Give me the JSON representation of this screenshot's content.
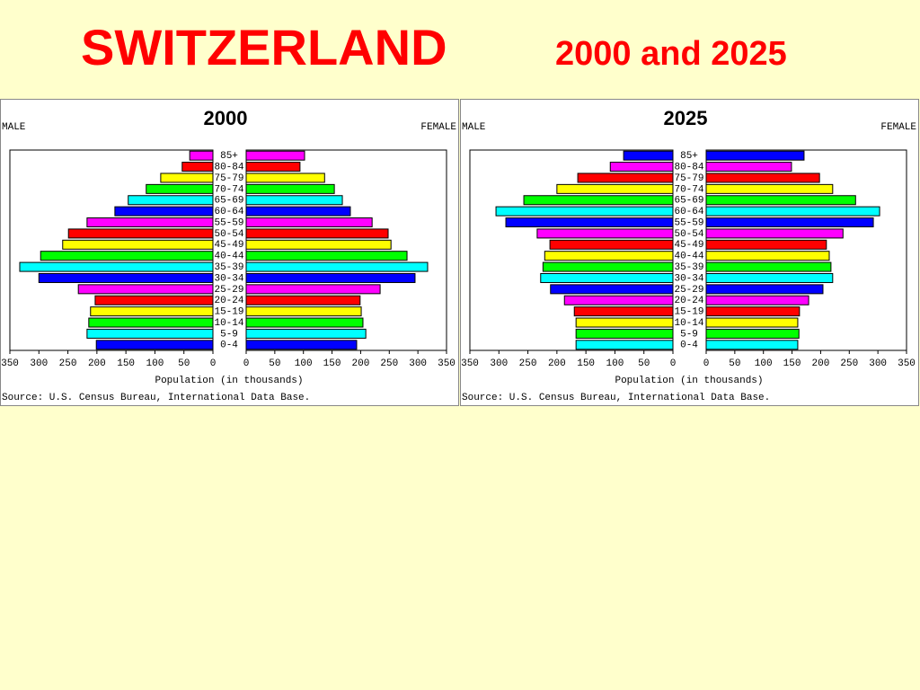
{
  "title": "SWITZERLAND",
  "subtitle": "2000 and 2025",
  "chart_data": [
    {
      "type": "pyramid",
      "title": "2000",
      "categories": [
        "0-4",
        "5-9",
        "10-14",
        "15-19",
        "20-24",
        "25-29",
        "30-34",
        "35-39",
        "40-44",
        "45-49",
        "50-54",
        "55-59",
        "60-64",
        "65-69",
        "70-74",
        "75-79",
        "80-84",
        "85+"
      ],
      "colors": [
        "#0000ff",
        "#00ffff",
        "#00ff00",
        "#ffff00",
        "#ff0000",
        "#ff00ff",
        "#0000ff",
        "#00ffff",
        "#00ff00",
        "#ffff00",
        "#ff0000",
        "#ff00ff",
        "#0000ff",
        "#00ffff",
        "#00ff00",
        "#ffff00",
        "#ff0000",
        "#ff00ff"
      ],
      "series": [
        {
          "name": "MALE",
          "values": [
            201,
            217,
            214,
            211,
            203,
            232,
            300,
            333,
            297,
            259,
            249,
            217,
            169,
            146,
            115,
            90,
            53,
            40
          ]
        },
        {
          "name": "FEMALE",
          "values": [
            193,
            209,
            204,
            201,
            199,
            234,
            295,
            317,
            281,
            253,
            248,
            220,
            182,
            168,
            154,
            137,
            94,
            102
          ]
        }
      ],
      "xlim": [
        0,
        350
      ],
      "xticks": [
        0,
        50,
        100,
        150,
        200,
        250,
        300,
        350
      ],
      "xlabel": "Population (in thousands)",
      "source": "Source: U.S. Census Bureau, International Data Base."
    },
    {
      "type": "pyramid",
      "title": "2025",
      "categories": [
        "0-4",
        "5-9",
        "10-14",
        "15-19",
        "20-24",
        "25-29",
        "30-34",
        "35-39",
        "40-44",
        "45-49",
        "50-54",
        "55-59",
        "60-64",
        "65-69",
        "70-74",
        "75-79",
        "80-84",
        "85+"
      ],
      "colors": [
        "#00ffff",
        "#00ff00",
        "#ffff00",
        "#ff0000",
        "#ff00ff",
        "#0000ff",
        "#00ffff",
        "#00ff00",
        "#ffff00",
        "#ff0000",
        "#ff00ff",
        "#0000ff",
        "#00ffff",
        "#00ff00",
        "#ffff00",
        "#ff0000",
        "#ff00ff",
        "#0000ff"
      ],
      "series": [
        {
          "name": "MALE",
          "values": [
            167,
            167,
            167,
            170,
            187,
            211,
            228,
            224,
            221,
            212,
            234,
            288,
            305,
            257,
            200,
            164,
            108,
            85
          ]
        },
        {
          "name": "FEMALE",
          "values": [
            160,
            162,
            160,
            163,
            179,
            204,
            221,
            218,
            215,
            210,
            239,
            292,
            303,
            261,
            221,
            198,
            149,
            171
          ]
        }
      ],
      "xlim": [
        0,
        350
      ],
      "xticks": [
        0,
        50,
        100,
        150,
        200,
        250,
        300,
        350
      ],
      "xlabel": "Population (in thousands)",
      "source": "Source: U.S. Census Bureau, International Data Base."
    }
  ]
}
